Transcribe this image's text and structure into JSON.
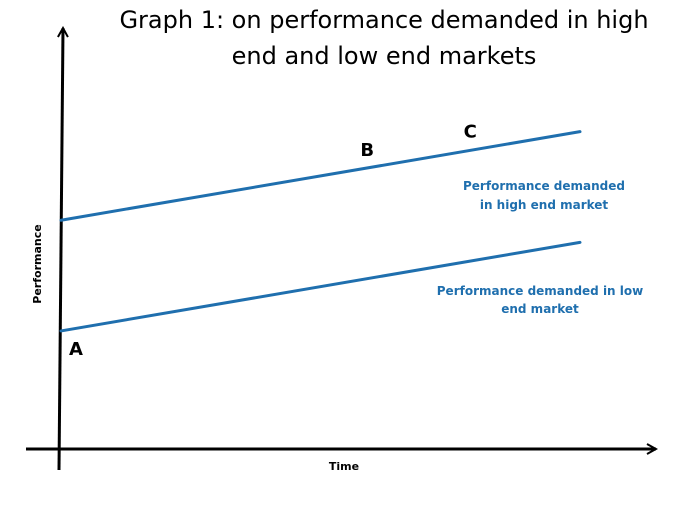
{
  "chart_data": {
    "type": "line",
    "title_lines": [
      "Graph 1: on performance demanded in high",
      "end and low end markets"
    ],
    "xlabel": "Time",
    "ylabel": "Performance",
    "grid": false,
    "color": "#1f6fae",
    "series": [
      {
        "id": "high",
        "label_lines": [
          "Performance demanded",
          "in high end market"
        ],
        "x": [
          0,
          1
        ],
        "y": [
          0.62,
          0.86
        ]
      },
      {
        "id": "low",
        "label_lines": [
          "Performance demanded in low",
          "end market"
        ],
        "x": [
          0,
          1
        ],
        "y": [
          0.32,
          0.56
        ]
      }
    ],
    "points": [
      {
        "label": "A",
        "series": "low",
        "x": 0.0
      },
      {
        "label": "B",
        "series": "high",
        "x": 0.59
      },
      {
        "label": "C",
        "series": "high",
        "x": 0.8
      }
    ]
  }
}
